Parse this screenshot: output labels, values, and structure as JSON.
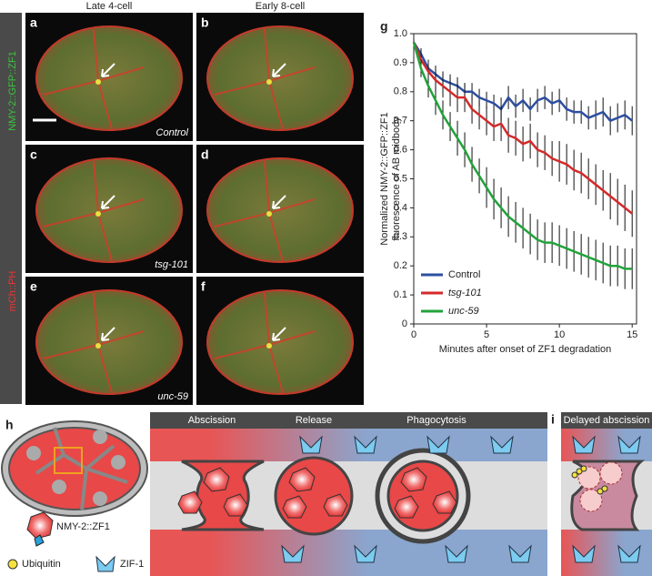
{
  "figure": {
    "column_headers": [
      "Late 4-cell",
      "Early 8-cell"
    ],
    "side_labels": [
      "NMY-2::GFP::ZF1",
      "mCh::PH"
    ],
    "panels": [
      {
        "letter": "a",
        "condition": "Control"
      },
      {
        "letter": "b"
      },
      {
        "letter": "c",
        "condition": "tsg-101"
      },
      {
        "letter": "d"
      },
      {
        "letter": "e",
        "condition": "unc-59"
      },
      {
        "letter": "f"
      }
    ],
    "chart_letter": "g",
    "diagram": {
      "letter_h": "h",
      "letter_i": "i",
      "stages": [
        "Abscission",
        "Release",
        "Phagocytosis"
      ],
      "delayed": "Delayed abscission",
      "legend": [
        "NMY-2::ZF1",
        "Ubiquitin",
        "ZIF-1"
      ]
    }
  },
  "chart_data": {
    "type": "line",
    "xlabel": "Minutes after onset of ZF1 degradation",
    "ylabel": [
      "Normalized NMY-2::GFP::ZF1",
      "fluorescence of AB midbody"
    ],
    "x": [
      0,
      0.5,
      1,
      1.5,
      2,
      2.5,
      3,
      3.5,
      4,
      4.5,
      5,
      5.5,
      6,
      6.5,
      7,
      7.5,
      8,
      8.5,
      9,
      9.5,
      10,
      10.5,
      11,
      11.5,
      12,
      12.5,
      13,
      13.5,
      14,
      14.5,
      15
    ],
    "series": [
      {
        "name": "Control",
        "color": "#2e4fa0",
        "values": [
          0.97,
          0.93,
          0.88,
          0.86,
          0.84,
          0.83,
          0.82,
          0.8,
          0.8,
          0.78,
          0.77,
          0.76,
          0.74,
          0.78,
          0.75,
          0.77,
          0.74,
          0.77,
          0.78,
          0.76,
          0.77,
          0.74,
          0.73,
          0.73,
          0.71,
          0.72,
          0.73,
          0.7,
          0.71,
          0.72,
          0.7
        ],
        "error": [
          0.01,
          0.02,
          0.03,
          0.03,
          0.03,
          0.03,
          0.03,
          0.03,
          0.03,
          0.03,
          0.03,
          0.03,
          0.04,
          0.04,
          0.04,
          0.04,
          0.04,
          0.04,
          0.04,
          0.04,
          0.04,
          0.04,
          0.04,
          0.04,
          0.04,
          0.05,
          0.05,
          0.05,
          0.05,
          0.05,
          0.05
        ]
      },
      {
        "name": "tsg-101",
        "color": "#d42a2a",
        "values": [
          0.97,
          0.91,
          0.87,
          0.84,
          0.82,
          0.8,
          0.78,
          0.78,
          0.74,
          0.72,
          0.7,
          0.68,
          0.69,
          0.65,
          0.64,
          0.62,
          0.63,
          0.6,
          0.59,
          0.57,
          0.56,
          0.55,
          0.53,
          0.52,
          0.5,
          0.48,
          0.46,
          0.44,
          0.42,
          0.4,
          0.38
        ],
        "error": [
          0.01,
          0.03,
          0.04,
          0.04,
          0.04,
          0.05,
          0.05,
          0.05,
          0.05,
          0.05,
          0.05,
          0.05,
          0.06,
          0.06,
          0.06,
          0.06,
          0.06,
          0.06,
          0.06,
          0.06,
          0.07,
          0.07,
          0.07,
          0.07,
          0.07,
          0.07,
          0.07,
          0.08,
          0.08,
          0.08,
          0.08
        ]
      },
      {
        "name": "unc-59",
        "color": "#22a33a",
        "values": [
          0.97,
          0.88,
          0.82,
          0.77,
          0.72,
          0.68,
          0.64,
          0.6,
          0.55,
          0.51,
          0.47,
          0.43,
          0.4,
          0.37,
          0.35,
          0.33,
          0.31,
          0.29,
          0.28,
          0.28,
          0.27,
          0.26,
          0.25,
          0.24,
          0.23,
          0.22,
          0.21,
          0.2,
          0.2,
          0.19,
          0.19
        ],
        "error": [
          0.01,
          0.03,
          0.04,
          0.05,
          0.05,
          0.05,
          0.06,
          0.06,
          0.06,
          0.06,
          0.07,
          0.07,
          0.07,
          0.07,
          0.07,
          0.07,
          0.07,
          0.07,
          0.07,
          0.07,
          0.07,
          0.07,
          0.07,
          0.07,
          0.07,
          0.07,
          0.07,
          0.07,
          0.07,
          0.07,
          0.07
        ]
      }
    ],
    "xlim": [
      0,
      15.3
    ],
    "ylim": [
      0,
      1
    ],
    "xticks": [
      0,
      5,
      10,
      15
    ],
    "yticks": [
      0,
      0.1,
      0.2,
      0.3,
      0.4,
      0.5,
      0.6,
      0.7,
      0.8,
      0.9,
      {
        "value": 1,
        "label": "1.0"
      }
    ]
  }
}
